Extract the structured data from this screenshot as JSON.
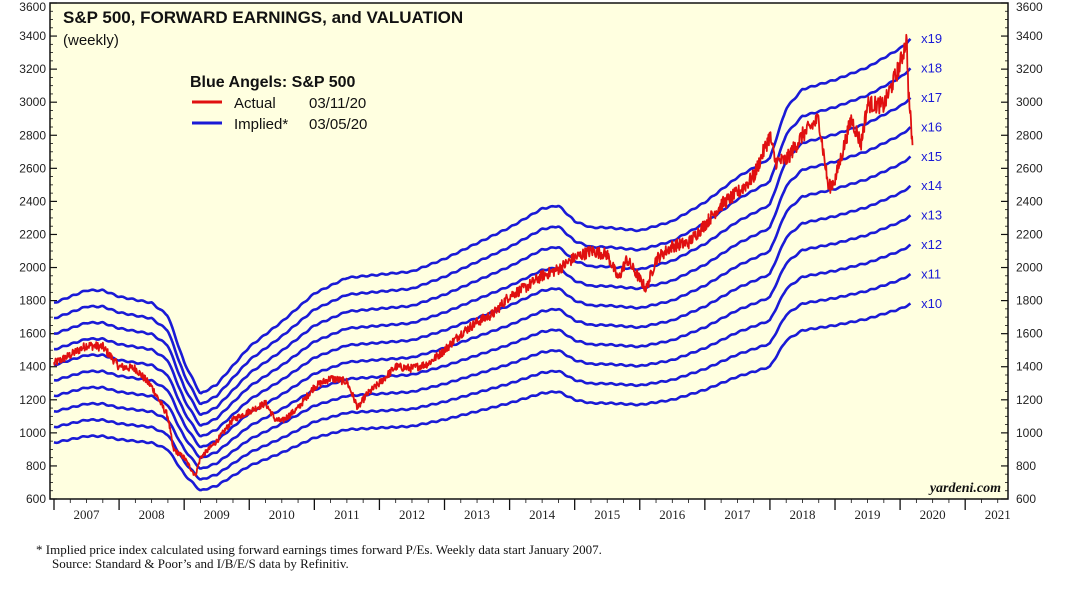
{
  "chart_data": {
    "type": "line",
    "title": "S&P 500, FORWARD EARNINGS, and VALUATION",
    "subtitle": "(weekly)",
    "legend": {
      "title": "Blue Angels: S&P 500",
      "placement": "top-left",
      "entries": [
        {
          "label": "Actual",
          "date": "03/11/20",
          "color": "#e01010"
        },
        {
          "label": "Implied*",
          "date": "03/05/20",
          "color": "#1a1ad6"
        }
      ]
    },
    "x_tick_labels": [
      "2007",
      "2008",
      "2009",
      "2010",
      "2011",
      "2012",
      "2013",
      "2014",
      "2015",
      "2016",
      "2017",
      "2018",
      "2019",
      "2020",
      "2021"
    ],
    "xlim": [
      2007.0,
      2021.75
    ],
    "y_ticks": [
      600,
      800,
      1000,
      1200,
      1400,
      1600,
      1800,
      2000,
      2200,
      2400,
      2600,
      2800,
      3000,
      3200,
      3400,
      3600
    ],
    "ylim": [
      600,
      3600
    ],
    "grid": false,
    "colors": {
      "actual": "#e01010",
      "implied": "#1a1ad6",
      "plot_background": "#ffffe0"
    },
    "forward_earnings": {
      "x": [
        2007.0,
        2007.5,
        2007.75,
        2008.0,
        2008.5,
        2008.75,
        2009.0,
        2009.25,
        2009.5,
        2010.0,
        2010.5,
        2011.0,
        2011.5,
        2012.0,
        2012.5,
        2013.0,
        2013.5,
        2014.0,
        2014.5,
        2014.75,
        2015.0,
        2015.25,
        2015.5,
        2016.0,
        2016.5,
        2017.0,
        2017.5,
        2018.0,
        2018.25,
        2018.5,
        2019.0,
        2019.5,
        2020.0,
        2020.17
      ],
      "values": [
        94,
        98,
        98,
        96,
        94,
        90,
        75,
        65,
        68,
        80,
        88,
        97,
        102,
        103,
        104,
        108,
        113,
        118,
        124,
        125,
        120,
        118,
        118,
        117,
        120,
        126,
        134,
        140,
        156,
        162,
        165,
        169,
        175,
        178
      ]
    },
    "series": [
      {
        "name": "x10",
        "multiple": 10
      },
      {
        "name": "x11",
        "multiple": 11
      },
      {
        "name": "x12",
        "multiple": 12
      },
      {
        "name": "x13",
        "multiple": 13
      },
      {
        "name": "x14",
        "multiple": 14
      },
      {
        "name": "x15",
        "multiple": 15
      },
      {
        "name": "x16",
        "multiple": 16
      },
      {
        "name": "x17",
        "multiple": 17
      },
      {
        "name": "x18",
        "multiple": 18
      },
      {
        "name": "x19",
        "multiple": 19
      }
    ],
    "actual": {
      "x": [
        2007.0,
        2007.25,
        2007.5,
        2007.75,
        2008.0,
        2008.25,
        2008.5,
        2008.75,
        2008.83,
        2009.0,
        2009.17,
        2009.25,
        2009.5,
        2009.75,
        2010.0,
        2010.25,
        2010.4,
        2010.5,
        2010.75,
        2011.0,
        2011.25,
        2011.5,
        2011.67,
        2011.8,
        2012.0,
        2012.25,
        2012.5,
        2012.75,
        2013.0,
        2013.25,
        2013.5,
        2013.75,
        2014.0,
        2014.25,
        2014.5,
        2014.75,
        2015.0,
        2015.25,
        2015.5,
        2015.67,
        2015.8,
        2016.0,
        2016.1,
        2016.25,
        2016.5,
        2016.75,
        2017.0,
        2017.25,
        2017.5,
        2017.75,
        2018.0,
        2018.08,
        2018.25,
        2018.5,
        2018.75,
        2018.9,
        2019.0,
        2019.25,
        2019.4,
        2019.5,
        2019.75,
        2020.0,
        2020.1,
        2020.13,
        2020.16,
        2020.19
      ],
      "values": [
        1420,
        1470,
        1530,
        1520,
        1400,
        1390,
        1280,
        1100,
        900,
        850,
        740,
        850,
        950,
        1080,
        1130,
        1180,
        1080,
        1070,
        1150,
        1280,
        1330,
        1310,
        1150,
        1230,
        1300,
        1400,
        1390,
        1420,
        1500,
        1600,
        1670,
        1720,
        1830,
        1880,
        1950,
        1990,
        2060,
        2100,
        2080,
        1930,
        2050,
        1930,
        1870,
        2050,
        2130,
        2150,
        2260,
        2380,
        2450,
        2550,
        2800,
        2640,
        2650,
        2800,
        2900,
        2480,
        2530,
        2900,
        2750,
        2990,
        2980,
        3230,
        3380,
        3050,
        2900,
        2740
      ]
    }
  },
  "multiple_labels": [
    "x19",
    "x18",
    "x17",
    "x16",
    "x15",
    "x14",
    "x13",
    "x12",
    "x11",
    "x10"
  ],
  "brand": "yardeni.com",
  "footnote_1": "*  Implied price index calculated using forward earnings times forward P/Es. Weekly data start January 2007.",
  "footnote_2": "Source: Standard & Poor’s and I/B/E/S data by Refinitiv."
}
